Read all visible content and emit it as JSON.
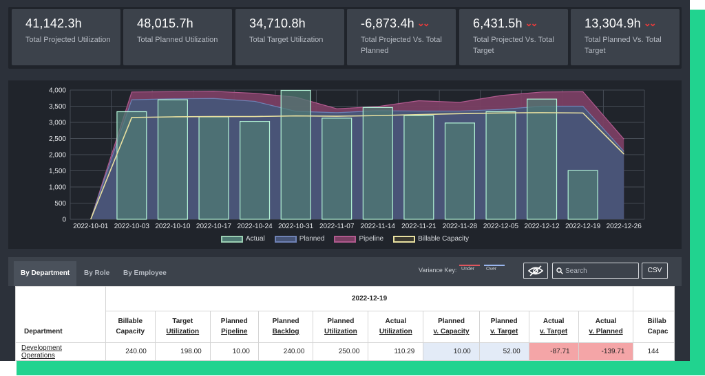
{
  "kpis": [
    {
      "value": "41,142.3h",
      "label": "Total Projected Utilization",
      "down": false
    },
    {
      "value": "48,015.7h",
      "label": "Total Planned Utilization",
      "down": false
    },
    {
      "value": "34,710.8h",
      "label": "Total Target Utilization",
      "down": false
    },
    {
      "value": "-6,873.4h",
      "label": "Total Projected Vs. Total Planned",
      "down": true
    },
    {
      "value": "6,431.5h",
      "label": "Total Projected Vs. Total Target",
      "down": true
    },
    {
      "value": "13,304.9h",
      "label": "Total Planned Vs. Total Target",
      "down": true
    }
  ],
  "chart_data": {
    "type": "bar",
    "categories": [
      "2022-10-01",
      "2022-10-03",
      "2022-10-10",
      "2022-10-17",
      "2022-10-24",
      "2022-10-31",
      "2022-11-07",
      "2022-11-14",
      "2022-11-21",
      "2022-11-28",
      "2022-12-05",
      "2022-12-12",
      "2022-12-19",
      "2022-12-26"
    ],
    "ylim": [
      0,
      4000
    ],
    "yticks": [
      "0",
      "500",
      "1,000",
      "1,500",
      "2,000",
      "2,500",
      "3,000",
      "3,500",
      "4,000"
    ],
    "grid": true,
    "legend_position": "bottom",
    "series": [
      {
        "name": "Actual",
        "type": "bar",
        "values": [
          null,
          3330,
          3700,
          3170,
          3030,
          3990,
          3130,
          3460,
          3210,
          2980,
          3330,
          3720,
          1510,
          null
        ]
      },
      {
        "name": "Planned",
        "type": "area",
        "values": [
          0,
          3700,
          3730,
          3740,
          3650,
          3340,
          3300,
          3360,
          3350,
          3350,
          3400,
          3500,
          3500,
          2100
        ]
      },
      {
        "name": "Pipeline",
        "type": "area",
        "values": [
          0,
          3940,
          3950,
          3960,
          3900,
          3780,
          3420,
          3490,
          3670,
          3620,
          3830,
          3940,
          3950,
          2480
        ]
      },
      {
        "name": "Billable Capacity",
        "type": "line",
        "values": [
          0,
          3150,
          3170,
          3180,
          3180,
          3200,
          3190,
          3210,
          3240,
          3270,
          3290,
          3300,
          3290,
          2020
        ]
      }
    ],
    "colors": {
      "Actual": "#4f7a73",
      "Planned": "#475578",
      "Pipeline": "#7a3f63",
      "Billable Capacity": "#e8e0a0",
      "bar_border": "#b5f5d8"
    }
  },
  "tabs": [
    "By Department",
    "By Role",
    "By Employee"
  ],
  "variance_key": {
    "label": "Variance Key:",
    "under": "Under",
    "over": "Over"
  },
  "search_placeholder": "Search",
  "csv_label": "CSV",
  "table": {
    "group_date": "2022-12-19",
    "dept_header": "Department",
    "columns": [
      {
        "label": [
          "Billable",
          "Capacity"
        ],
        "underline": false
      },
      {
        "label": [
          "Target",
          "Utilization"
        ],
        "underline": true
      },
      {
        "label": [
          "Planned",
          "Pipeline"
        ],
        "underline": true
      },
      {
        "label": [
          "Planned",
          "Backlog"
        ],
        "underline": true
      },
      {
        "label": [
          "Planned",
          "Utilization"
        ],
        "underline": true
      },
      {
        "label": [
          "Actual",
          "Utilization"
        ],
        "underline": true
      },
      {
        "label": [
          "Planned",
          "v. Capacity"
        ],
        "underline": true
      },
      {
        "label": [
          "Planned",
          "v. Target"
        ],
        "underline": true
      },
      {
        "label": [
          "Actual",
          "v. Target"
        ],
        "underline": true
      },
      {
        "label": [
          "Actual",
          "v. Planned"
        ],
        "underline": true
      },
      {
        "label": [
          "Billab",
          "Capac"
        ],
        "underline": false
      }
    ],
    "rows": [
      {
        "department": "Development Operations",
        "values": [
          "240.00",
          "198.00",
          "10.00",
          "240.00",
          "250.00",
          "110.29",
          "10.00",
          "52.00",
          "-87.71",
          "-139.71",
          "144"
        ]
      }
    ]
  }
}
